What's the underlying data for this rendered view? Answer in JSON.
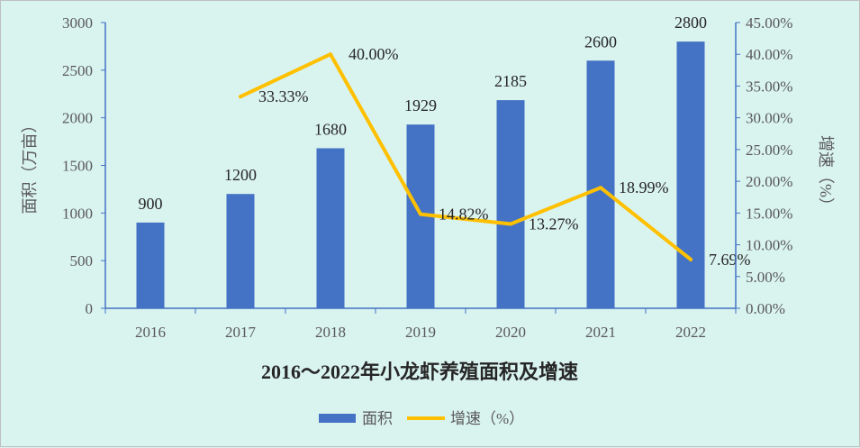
{
  "chart_data": {
    "type": "bar+line",
    "title": "2016～2022年小龙虾养殖面积及增速",
    "categories": [
      "2016",
      "2017",
      "2018",
      "2019",
      "2020",
      "2021",
      "2022"
    ],
    "series": [
      {
        "name": "面积",
        "type": "bar",
        "axis": "left",
        "values": [
          900,
          1200,
          1680,
          1929,
          2185,
          2600,
          2800
        ],
        "labels": [
          "900",
          "1200",
          "1680",
          "1929",
          "2185",
          "2600",
          "2800"
        ],
        "color": "#4472c4"
      },
      {
        "name": "增速（%）",
        "type": "line",
        "axis": "right",
        "values": [
          null,
          33.33,
          40.0,
          14.82,
          13.27,
          18.99,
          7.69
        ],
        "labels": [
          "",
          "33.33%",
          "40.00%",
          "14.82%",
          "13.27%",
          "18.99%",
          "7.69%"
        ],
        "color": "#ffc000"
      }
    ],
    "ylabel": "面积（万亩）",
    "y2label": "增速（%）",
    "ylim": [
      0,
      3000
    ],
    "y2lim": [
      0,
      45
    ],
    "yticks": [
      "0",
      "500",
      "1000",
      "1500",
      "2000",
      "2500",
      "3000"
    ],
    "y2ticks": [
      "0.00%",
      "5.00%",
      "10.00%",
      "15.00%",
      "20.00%",
      "25.00%",
      "30.00%",
      "35.00%",
      "40.00%",
      "45.00%"
    ],
    "grid": false,
    "legend_position": "bottom"
  },
  "colors": {
    "background": "#d9f3ef",
    "axis": "#4472c4"
  }
}
